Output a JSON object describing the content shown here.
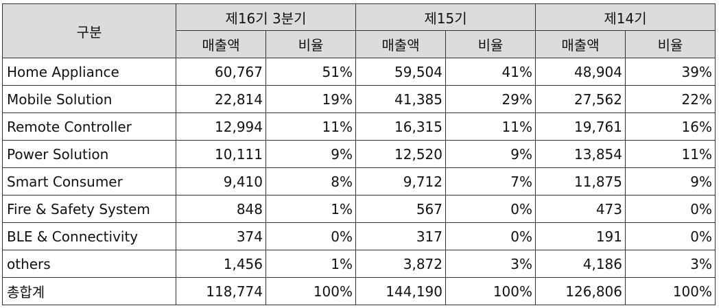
{
  "table": {
    "corner_label": "구분",
    "period_headers": [
      "제16기 3분기",
      "제15기",
      "제14기"
    ],
    "sub_headers": [
      "매출액",
      "비율",
      "매출액",
      "비율",
      "매출액",
      "비율"
    ],
    "rows": [
      {
        "label": "Home Appliance",
        "cells": [
          "60,767",
          "51%",
          "59,504",
          "41%",
          "48,904",
          "39%"
        ]
      },
      {
        "label": "Mobile Solution",
        "cells": [
          "22,814",
          "19%",
          "41,385",
          "29%",
          "27,562",
          "22%"
        ]
      },
      {
        "label": "Remote Controller",
        "cells": [
          "12,994",
          "11%",
          "16,315",
          "11%",
          "19,761",
          "16%"
        ]
      },
      {
        "label": "Power Solution",
        "cells": [
          "10,111",
          "9%",
          "12,520",
          "9%",
          "13,854",
          "11%"
        ]
      },
      {
        "label": "Smart Consumer",
        "cells": [
          "9,410",
          "8%",
          "9,712",
          "7%",
          "11,875",
          "9%"
        ]
      },
      {
        "label": "Fire & Safety System",
        "cells": [
          "848",
          "1%",
          "567",
          "0%",
          "473",
          "0%"
        ]
      },
      {
        "label": "BLE & Connectivity",
        "cells": [
          "374",
          "0%",
          "317",
          "0%",
          "191",
          "0%"
        ]
      },
      {
        "label": "others",
        "cells": [
          "1,456",
          "1%",
          "3,872",
          "3%",
          "4,186",
          "3%"
        ]
      },
      {
        "label": "총합계",
        "cells": [
          "118,774",
          "100%",
          "144,190",
          "100%",
          "126,806",
          "100%"
        ]
      }
    ]
  }
}
